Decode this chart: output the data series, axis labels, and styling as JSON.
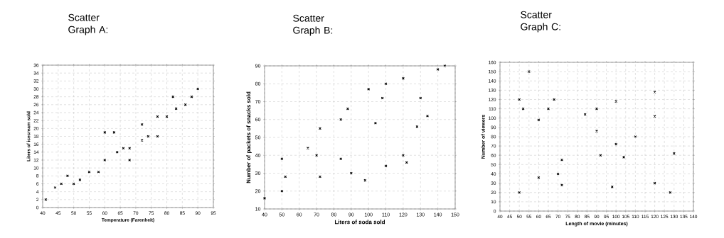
{
  "chart_data": [
    {
      "type": "scatter",
      "title": "Scatter Graph A:",
      "xlabel": "Temperature (Farenheit)",
      "ylabel": "Liters of icecream sold",
      "marker": "cross",
      "grid": true,
      "color": "#000000",
      "x": [
        41,
        44,
        46,
        48,
        50,
        52,
        55,
        58,
        60,
        60,
        63,
        64,
        66,
        68,
        68,
        72,
        72,
        74,
        77,
        77,
        80,
        82,
        83,
        86,
        88,
        90
      ],
      "values": [
        2,
        5,
        6,
        8,
        6,
        7,
        9,
        9,
        19,
        12,
        19,
        14,
        15,
        15,
        12,
        21,
        17,
        18,
        23,
        18,
        23,
        28,
        25,
        26,
        28,
        30
      ],
      "xlim": [
        40,
        95
      ],
      "xticks": [
        40,
        45,
        50,
        55,
        60,
        65,
        70,
        75,
        80,
        85,
        90,
        95
      ],
      "ylim": [
        0,
        36
      ],
      "yticks": [
        0,
        2,
        4,
        6,
        8,
        10,
        12,
        14,
        16,
        18,
        20,
        22,
        24,
        26,
        28,
        30,
        32,
        34,
        36
      ]
    },
    {
      "type": "scatter",
      "title": "Scatter Graph B:",
      "xlabel": "Liters of soda sold",
      "ylabel": "Number of packets of snacks sold",
      "marker": "cross",
      "grid": true,
      "color": "#000000",
      "x": [
        40,
        50,
        50,
        52,
        65,
        70,
        72,
        72,
        84,
        84,
        88,
        90,
        98,
        100,
        104,
        108,
        110,
        110,
        120,
        120,
        122,
        128,
        130,
        134,
        140,
        144
      ],
      "values": [
        16,
        38,
        20,
        28,
        44,
        40,
        55,
        28,
        60,
        38,
        66,
        30,
        26,
        77,
        58,
        72,
        80,
        34,
        83,
        40,
        36,
        56,
        72,
        62,
        88,
        90
      ],
      "xlim": [
        40,
        150
      ],
      "xticks": [
        40,
        50,
        60,
        70,
        80,
        90,
        100,
        110,
        120,
        130,
        140,
        150
      ],
      "ylim": [
        10,
        90
      ],
      "yticks": [
        10,
        20,
        30,
        40,
        50,
        60,
        70,
        80,
        90
      ]
    },
    {
      "type": "scatter",
      "title": "Scatter Graph C:",
      "xlabel": "Length of movie (minutes)",
      "ylabel": "Number of viewers",
      "marker": "cross",
      "grid": true,
      "color": "#000000",
      "x": [
        50,
        50,
        52,
        55,
        60,
        60,
        65,
        68,
        70,
        72,
        72,
        84,
        90,
        90,
        92,
        98,
        100,
        100,
        104,
        110,
        120,
        120,
        120,
        128,
        130
      ],
      "values": [
        120,
        20,
        110,
        150,
        98,
        36,
        110,
        120,
        40,
        55,
        28,
        104,
        110,
        86,
        60,
        26,
        118,
        72,
        58,
        80,
        128,
        102,
        30,
        20,
        62
      ],
      "xlim": [
        40,
        140
      ],
      "xticks": [
        40,
        45,
        50,
        55,
        60,
        65,
        70,
        75,
        80,
        85,
        90,
        95,
        100,
        105,
        110,
        115,
        120,
        125,
        130,
        135,
        140
      ],
      "ylim": [
        0,
        160
      ],
      "yticks": [
        0,
        10,
        20,
        30,
        40,
        50,
        60,
        70,
        80,
        90,
        100,
        110,
        120,
        130,
        140,
        150,
        160
      ]
    }
  ]
}
